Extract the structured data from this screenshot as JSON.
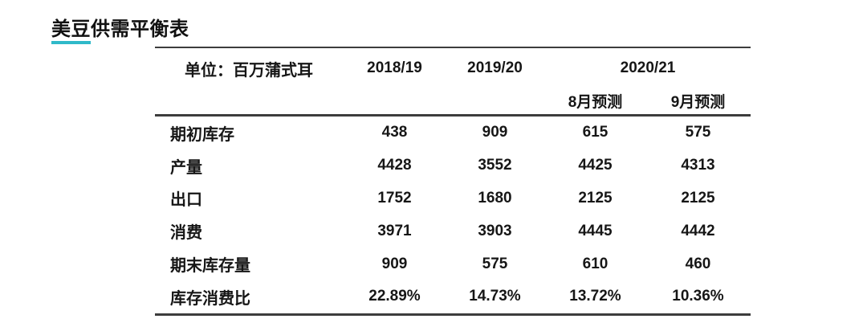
{
  "title": {
    "highlight": "美豆",
    "rest": "供需平衡表"
  },
  "table": {
    "unit_label": "单位：百万蒲式耳",
    "col_headers": [
      "2018/19",
      "2019/20",
      "2020/21"
    ],
    "sub_headers": [
      "8月预测",
      "9月预测"
    ],
    "rows": [
      {
        "label": "期初库存",
        "values": [
          "438",
          "909",
          "615",
          "575"
        ]
      },
      {
        "label": "产量",
        "values": [
          "4428",
          "3552",
          "4425",
          "4313"
        ]
      },
      {
        "label": "出口",
        "values": [
          "1752",
          "1680",
          "2125",
          "2125"
        ]
      },
      {
        "label": "消费",
        "values": [
          "3971",
          "3903",
          "4445",
          "4442"
        ]
      },
      {
        "label": "期末库存量",
        "values": [
          "909",
          "575",
          "610",
          "460"
        ]
      },
      {
        "label": "库存消费比",
        "values": [
          "22.89%",
          "14.73%",
          "13.72%",
          "10.36%"
        ]
      }
    ]
  },
  "colors": {
    "title_underline": "#2fb9c9",
    "rule": "#3d3d3d",
    "text": "#161616"
  }
}
